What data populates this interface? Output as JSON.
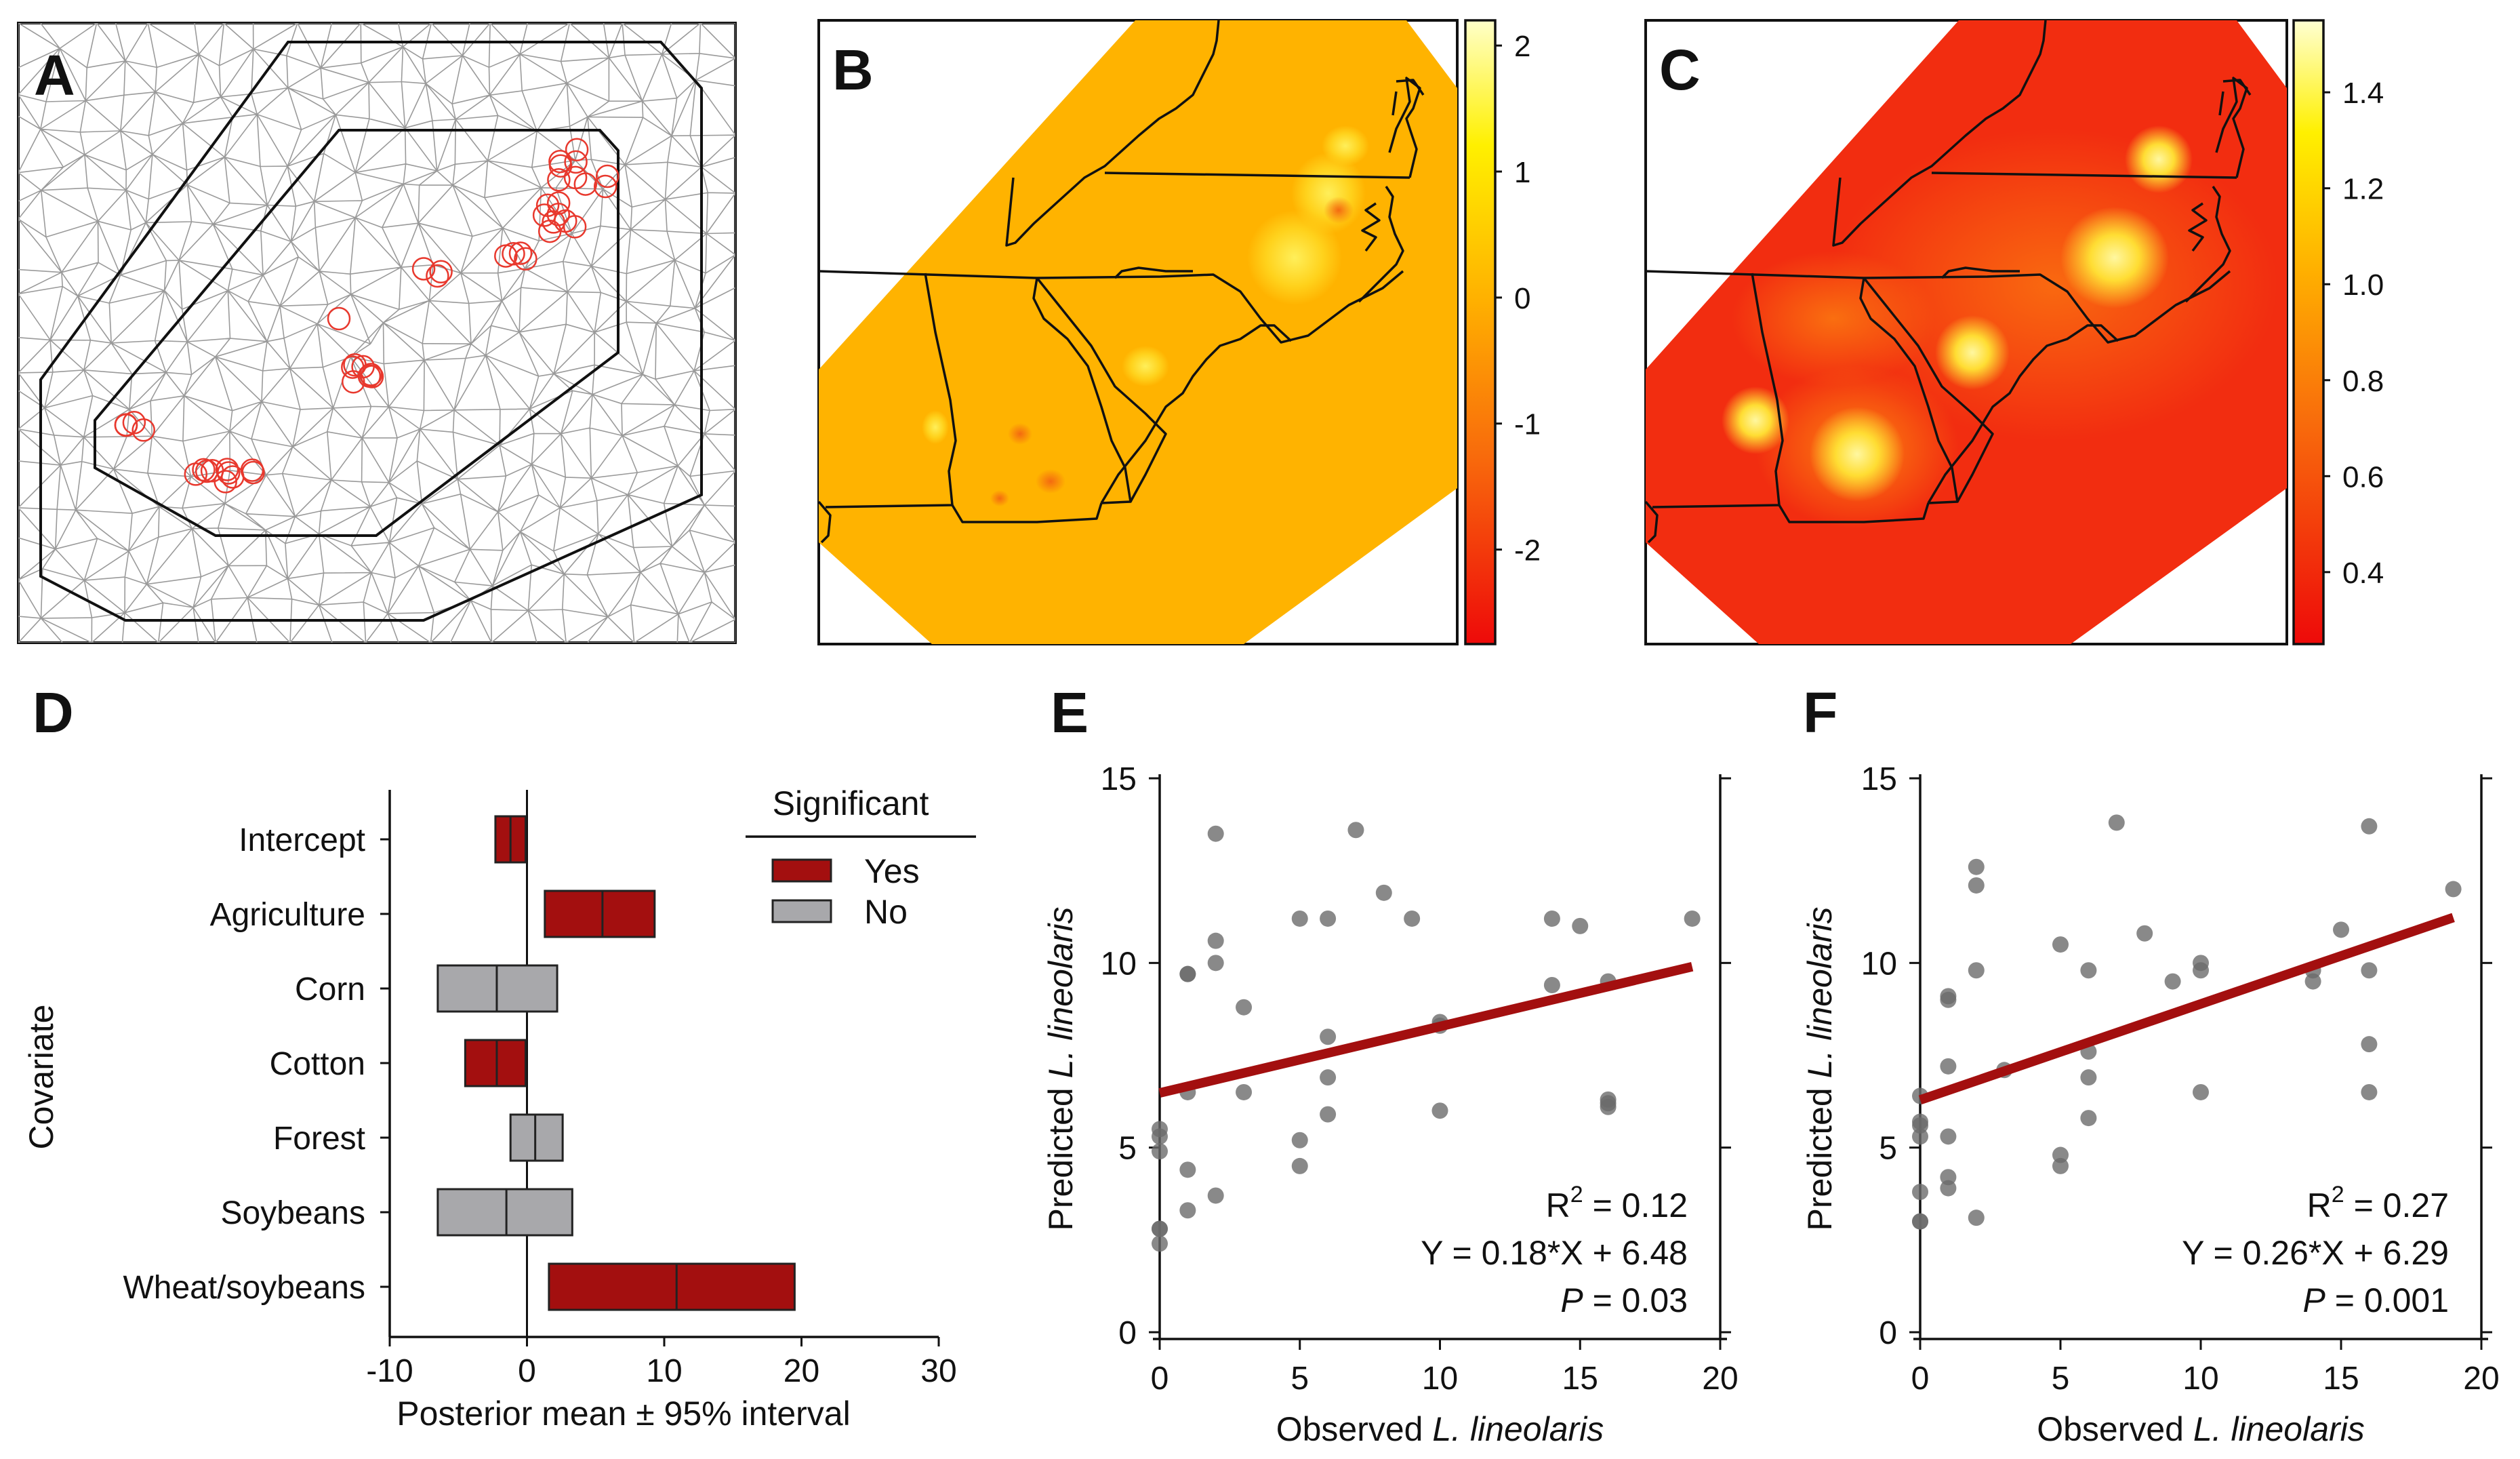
{
  "panels": {
    "A": {
      "label": "A"
    },
    "B": {
      "label": "B",
      "colorbar_ticks": [
        "2",
        "1",
        "0",
        "-1",
        "-2"
      ],
      "colorbar_values": [
        2,
        1,
        0,
        -1,
        -2
      ],
      "colorbar_range": [
        -2.75,
        2.2
      ]
    },
    "C": {
      "label": "C",
      "colorbar_ticks": [
        "1.4",
        "1.2",
        "1.0",
        "0.8",
        "0.6",
        "0.4"
      ],
      "colorbar_values": [
        1.4,
        1.2,
        1.0,
        0.8,
        0.6,
        0.4
      ],
      "colorbar_range": [
        0.25,
        1.55
      ]
    },
    "D": {
      "label": "D"
    },
    "E": {
      "label": "E"
    },
    "F": {
      "label": "F"
    }
  },
  "colors": {
    "significant": "#a30f0f",
    "not_significant": "#a8a8ab",
    "regression": "#a30f0f",
    "point": "#6b6b6b",
    "mesh": "#9a9a9a",
    "circle": "#e8382d"
  },
  "chart_data": [
    {
      "panel": "D",
      "type": "bar",
      "orientation": "horizontal",
      "ylabel": "Covariate",
      "xlabel": "Posterior mean ± 95% interval",
      "xlim": [
        -10,
        30
      ],
      "xticks": [
        "-10",
        "0",
        "10",
        "20",
        "30"
      ],
      "xtick_values": [
        -10,
        0,
        10,
        20,
        30
      ],
      "legend": {
        "title": "Significant",
        "yes": "Yes",
        "no": "No",
        "placement": "top-right"
      },
      "categories": [
        "Intercept",
        "Agriculture",
        "Corn",
        "Cotton",
        "Forest",
        "Soybeans",
        "Wheat/soybeans"
      ],
      "mean": [
        -1.2,
        5.5,
        -2.2,
        -2.2,
        0.6,
        -1.5,
        10.9
      ],
      "lower": [
        -2.3,
        1.3,
        -6.5,
        -4.5,
        -1.2,
        -6.5,
        1.6
      ],
      "upper": [
        -0.1,
        9.3,
        2.2,
        -0.1,
        2.6,
        3.3,
        19.5
      ],
      "significant": [
        true,
        true,
        false,
        true,
        false,
        false,
        true
      ]
    },
    {
      "panel": "E",
      "type": "scatter",
      "ylabel_prefix": "Predicted ",
      "ylabel_italic": "L. lineolaris",
      "xlabel_prefix": "Observed ",
      "xlabel_italic": "L. lineolaris",
      "xlim": [
        0,
        20
      ],
      "ylim": [
        0,
        15
      ],
      "xticks": [
        "0",
        "5",
        "10",
        "15",
        "20"
      ],
      "xtick_values": [
        0,
        5,
        10,
        15,
        20
      ],
      "yticks": [
        "0",
        "5",
        "10",
        "15"
      ],
      "ytick_values": [
        0,
        5,
        10,
        15
      ],
      "x": [
        0,
        0,
        0,
        0,
        0,
        0,
        1,
        1,
        1,
        1,
        1,
        2,
        2,
        2,
        2,
        3,
        3,
        5,
        5,
        5,
        6,
        6,
        6,
        6,
        7,
        8,
        9,
        10,
        10,
        10,
        14,
        14,
        15,
        16,
        16,
        16,
        16,
        19
      ],
      "y": [
        2.8,
        2.8,
        2.4,
        4.9,
        5.3,
        5.5,
        9.7,
        9.7,
        6.5,
        4.4,
        3.3,
        13.5,
        10.6,
        10.0,
        3.7,
        8.8,
        6.5,
        11.2,
        5.2,
        4.5,
        11.2,
        8.0,
        6.9,
        5.9,
        13.6,
        11.9,
        11.2,
        8.4,
        8.3,
        6.0,
        11.2,
        9.4,
        11.0,
        9.5,
        6.2,
        6.1,
        6.3,
        11.2
      ],
      "fit": {
        "slope": 0.18,
        "intercept": 6.48,
        "x_range": [
          0,
          19
        ]
      },
      "annotation": {
        "r2_prefix": "R",
        "r2_sup": "2",
        "r2_value": " = 0.12",
        "equation": "Y = 0.18*X + 6.48",
        "p_label": "P",
        "p_value": " = 0.03"
      }
    },
    {
      "panel": "F",
      "type": "scatter",
      "ylabel_prefix": "Predicted ",
      "ylabel_italic": "L. lineolaris",
      "xlabel_prefix": "Observed ",
      "xlabel_italic": "L. lineolaris",
      "xlim": [
        0,
        20
      ],
      "ylim": [
        0,
        15
      ],
      "xticks": [
        "0",
        "5",
        "10",
        "15",
        "20"
      ],
      "xtick_values": [
        0,
        5,
        10,
        15,
        20
      ],
      "yticks": [
        "0",
        "5",
        "10",
        "15"
      ],
      "ytick_values": [
        0,
        5,
        10,
        15
      ],
      "x": [
        0,
        0,
        0,
        0,
        0,
        0,
        0,
        1,
        1,
        1,
        1,
        1,
        1,
        2,
        2,
        2,
        2,
        3,
        5,
        5,
        5,
        6,
        6,
        6,
        6,
        7,
        8,
        9,
        10,
        10,
        10,
        14,
        14,
        15,
        16,
        16,
        16,
        16,
        19
      ],
      "y": [
        3.0,
        3.0,
        3.8,
        5.3,
        5.6,
        6.4,
        5.7,
        9.0,
        9.1,
        7.2,
        5.3,
        4.2,
        3.9,
        12.6,
        12.1,
        9.8,
        3.1,
        7.1,
        10.5,
        4.8,
        4.5,
        9.8,
        7.6,
        6.9,
        5.8,
        13.8,
        10.8,
        9.5,
        10.0,
        9.8,
        6.5,
        9.5,
        9.8,
        10.9,
        13.7,
        9.8,
        7.8,
        6.5,
        12.0
      ],
      "fit": {
        "slope": 0.26,
        "intercept": 6.29,
        "x_range": [
          0,
          19
        ]
      },
      "annotation": {
        "r2_prefix": "R",
        "r2_sup": "2",
        "r2_value": " = 0.27",
        "equation": "Y = 0.26*X + 6.29",
        "p_label": "P",
        "p_value": " = 0.001"
      }
    }
  ]
}
